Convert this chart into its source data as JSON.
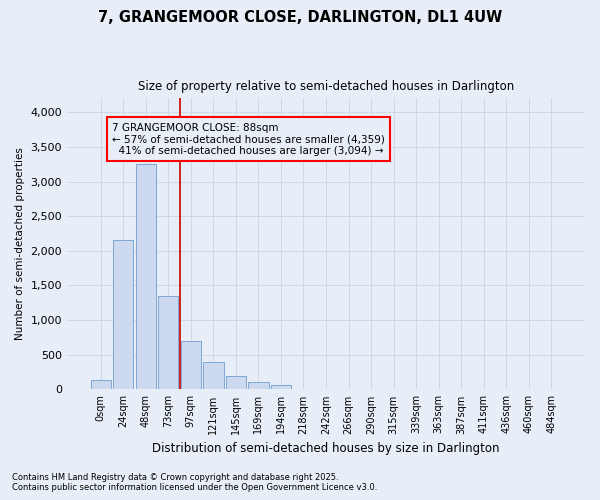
{
  "title1": "7, GRANGEMOOR CLOSE, DARLINGTON, DL1 4UW",
  "title2": "Size of property relative to semi-detached houses in Darlington",
  "xlabel": "Distribution of semi-detached houses by size in Darlington",
  "ylabel": "Number of semi-detached properties",
  "footnote1": "Contains HM Land Registry data © Crown copyright and database right 2025.",
  "footnote2": "Contains public sector information licensed under the Open Government Licence v3.0.",
  "bar_labels": [
    "0sqm",
    "24sqm",
    "48sqm",
    "73sqm",
    "97sqm",
    "121sqm",
    "145sqm",
    "169sqm",
    "194sqm",
    "218sqm",
    "242sqm",
    "266sqm",
    "290sqm",
    "315sqm",
    "339sqm",
    "363sqm",
    "387sqm",
    "411sqm",
    "436sqm",
    "460sqm",
    "484sqm"
  ],
  "bar_values": [
    130,
    2150,
    3250,
    1350,
    700,
    400,
    200,
    100,
    70,
    0,
    0,
    0,
    0,
    0,
    0,
    0,
    0,
    0,
    0,
    0,
    0
  ],
  "bar_color": "#ccd9ee",
  "bar_edge_color": "#7da7d4",
  "background_color": "#e8eef7",
  "grid_color": "#d0d8e8",
  "vline_x_pos": 3.5,
  "vline_color": "#cc0000",
  "property_size": "88sqm",
  "property_name": "7 GRANGEMOOR CLOSE",
  "pct_smaller": "57%",
  "count_smaller": "4,359",
  "pct_larger": "41%",
  "count_larger": "3,094",
  "annotation_box_color": "red",
  "ylim": [
    0,
    4200
  ],
  "yticks": [
    0,
    500,
    1000,
    1500,
    2000,
    2500,
    3000,
    3500,
    4000
  ]
}
